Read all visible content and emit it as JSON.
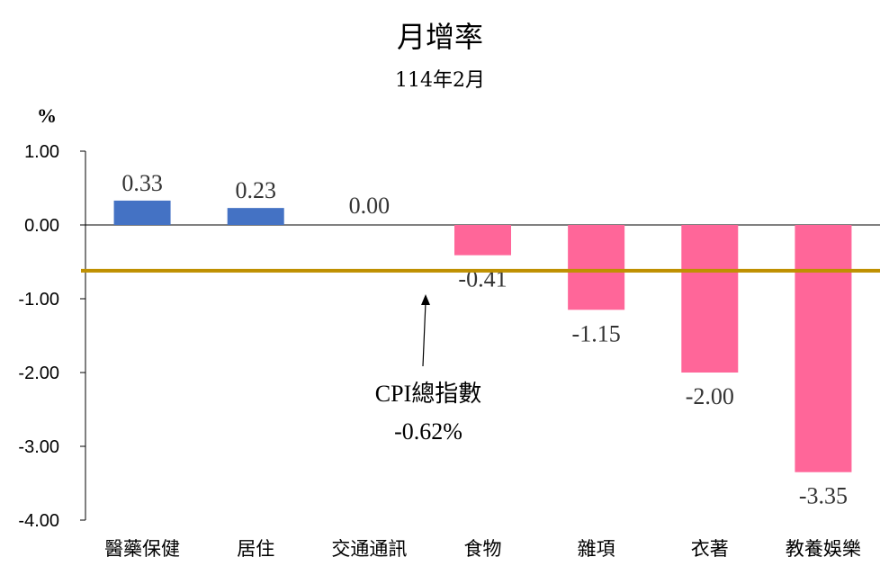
{
  "chart_data": {
    "type": "bar",
    "title": "月增率",
    "subtitle": "114年2月",
    "ylabel": "%",
    "categories": [
      "醫藥保健",
      "居住",
      "交通通訊",
      "食物",
      "雜項",
      "衣著",
      "教養娛樂"
    ],
    "values": [
      0.33,
      0.23,
      0.0,
      -0.41,
      -1.15,
      -2.0,
      -3.35
    ],
    "value_labels": [
      "0.33",
      "0.23",
      "0.00",
      "-0.41",
      "-1.15",
      "-2.00",
      "-3.35"
    ],
    "ylim": [
      -4.0,
      1.0
    ],
    "yticks": [
      "1.00",
      "0.00",
      "-1.00",
      "-2.00",
      "-3.00",
      "-4.00"
    ],
    "ytick_values": [
      1,
      0,
      -1,
      -2,
      -3,
      -4
    ],
    "positive_color": "#4472C4",
    "negative_color": "#FF6699",
    "reference_line": {
      "value": -0.62,
      "color": "#BF9000",
      "label_line1": "CPI總指數",
      "label_line2": "-0.62%"
    },
    "grid": false,
    "legend": "none"
  }
}
